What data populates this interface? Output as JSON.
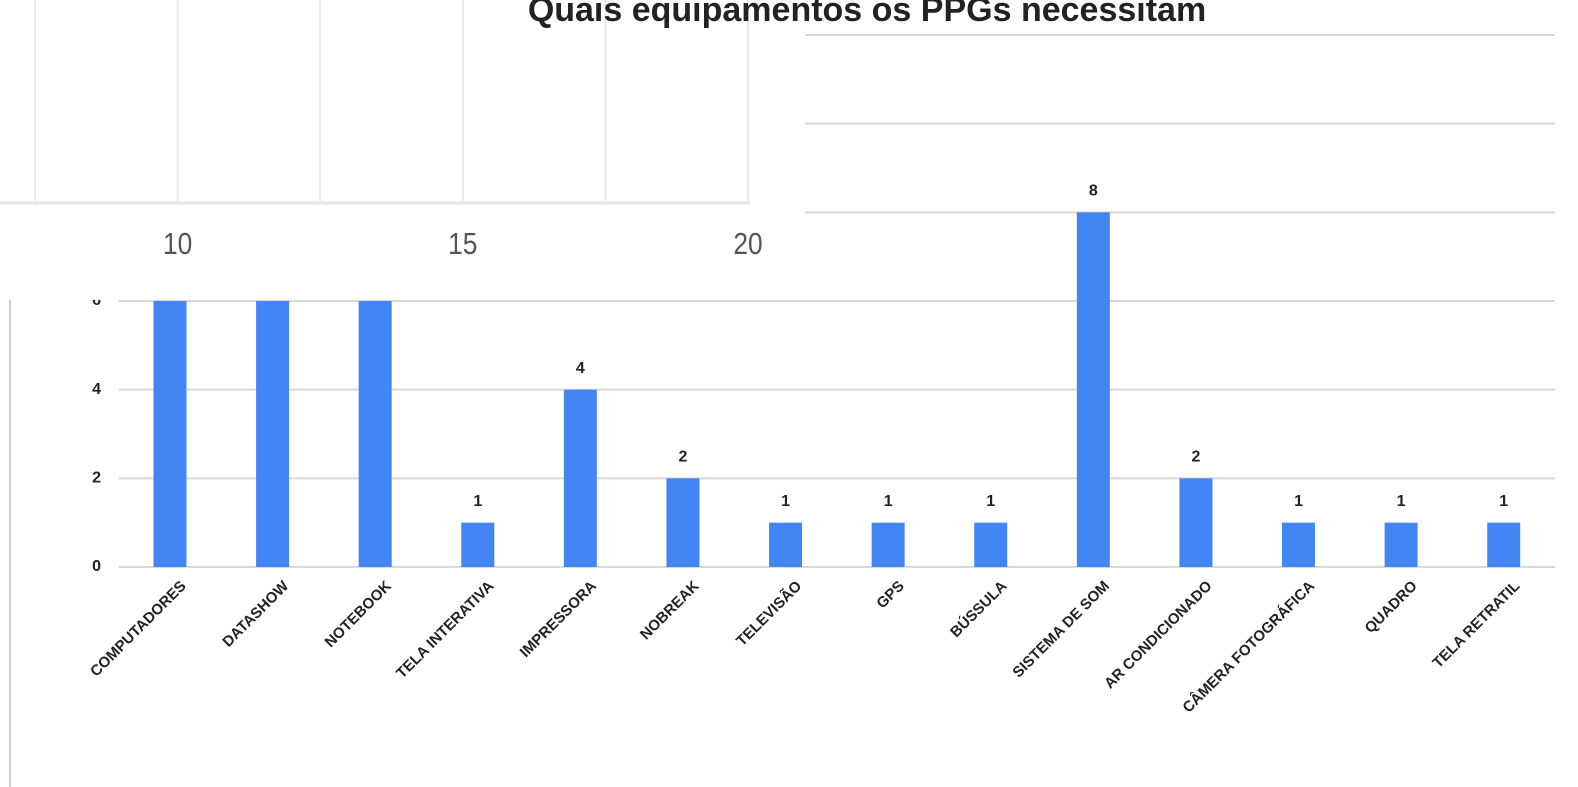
{
  "chart_data": [
    {
      "type": "bar",
      "title": "Quais equipamentos os PPGs necessitam",
      "categories": [
        "COMPUTADORES",
        "DATASHOW",
        "NOTEBOOK",
        "TELA INTERATIVA",
        "IMPRESSORA",
        "NOBREAK",
        "TELEVISÃO",
        "GPS",
        "BÚSSULA",
        "SISTEMA DE SOM",
        "AR CONDICIONADO",
        "CÂMERA FOTOGRÁFICA",
        "QUADRO",
        "TELA RETRATIL"
      ],
      "values": [
        6,
        6,
        6,
        1,
        4,
        2,
        1,
        1,
        1,
        8,
        2,
        1,
        1,
        1
      ],
      "color": "#4285f4",
      "ylim": [
        0,
        12
      ],
      "yticks": [
        0,
        2,
        4,
        6,
        8,
        10,
        12
      ],
      "grid": true
    },
    {
      "type": "axis-fragment",
      "xlim": [
        7.5,
        20
      ],
      "xticks": [
        10,
        15,
        20
      ],
      "minor_xticks": [
        7.5,
        12.5,
        17.5
      ],
      "grid": true
    }
  ]
}
